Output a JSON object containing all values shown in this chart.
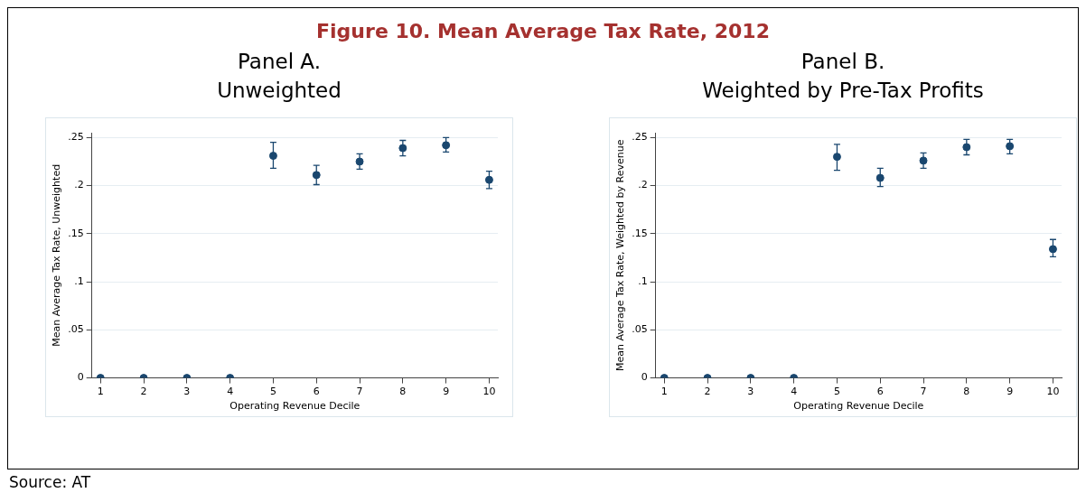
{
  "chart_data": [
    {
      "type": "other",
      "title": "Figure 10. Mean Average Tax Rate, 2012",
      "annotations": [
        "Source: AT"
      ]
    },
    {
      "type": "scatter",
      "title": "Panel A.",
      "subtitle": "Unweighted",
      "xlabel": "Operating Revenue Decile",
      "ylabel": "Mean Average Tax Rate, Unweighted",
      "x": [
        1,
        2,
        3,
        4,
        5,
        6,
        7,
        8,
        9,
        10
      ],
      "series": [
        {
          "color": "#1a476f",
          "values": [
            0,
            0,
            0,
            0,
            0.231,
            0.211,
            0.225,
            0.239,
            0.242,
            0.206
          ],
          "errors": [
            null,
            null,
            null,
            null,
            [
              0.218,
              0.245
            ],
            [
              0.201,
              0.221
            ],
            [
              0.217,
              0.233
            ],
            [
              0.231,
              0.247
            ],
            [
              0.235,
              0.25
            ],
            [
              0.197,
              0.215
            ]
          ]
        }
      ],
      "xlim": [
        0.8,
        10.2
      ],
      "xticks": [
        1,
        2,
        3,
        4,
        5,
        6,
        7,
        8,
        9,
        10
      ],
      "ylim": [
        0,
        0.255
      ],
      "yticks": [
        0,
        {
          "value": 0.05,
          "label": ".05"
        },
        {
          "value": 0.1,
          "label": ".1"
        },
        {
          "value": 0.15,
          "label": ".15"
        },
        {
          "value": 0.2,
          "label": ".2"
        },
        {
          "value": 0.25,
          "label": ".25"
        }
      ],
      "grid": "y",
      "marker": "circle",
      "legend": false
    },
    {
      "type": "scatter",
      "title": "Panel B.",
      "subtitle": "Weighted by Pre-Tax Profits",
      "xlabel": "Operating Revenue Decile",
      "ylabel": "Mean Average Tax Rate, Weighted by Revenue",
      "x": [
        1,
        2,
        3,
        4,
        5,
        6,
        7,
        8,
        9,
        10
      ],
      "series": [
        {
          "color": "#1a476f",
          "values": [
            0,
            0,
            0,
            0,
            0.23,
            0.208,
            0.226,
            0.24,
            0.241,
            0.134
          ],
          "errors": [
            null,
            null,
            null,
            null,
            [
              0.216,
              0.243
            ],
            [
              0.199,
              0.218
            ],
            [
              0.218,
              0.234
            ],
            [
              0.232,
              0.248
            ],
            [
              0.233,
              0.248
            ],
            [
              0.126,
              0.144
            ]
          ]
        }
      ],
      "xlim": [
        0.8,
        10.2
      ],
      "xticks": [
        1,
        2,
        3,
        4,
        5,
        6,
        7,
        8,
        9,
        10
      ],
      "ylim": [
        0,
        0.255
      ],
      "yticks": [
        0,
        {
          "value": 0.05,
          "label": ".05"
        },
        {
          "value": 0.1,
          "label": ".1"
        },
        {
          "value": 0.15,
          "label": ".15"
        },
        {
          "value": 0.2,
          "label": ".2"
        },
        {
          "value": 0.25,
          "label": ".25"
        }
      ],
      "grid": "y",
      "marker": "circle",
      "legend": false
    }
  ]
}
